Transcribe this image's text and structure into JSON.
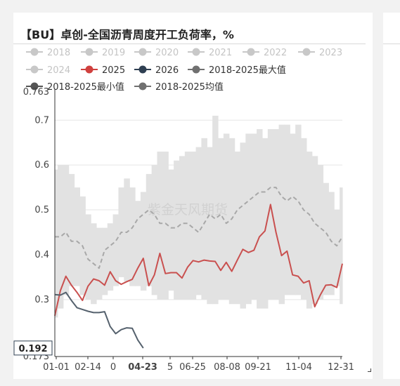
{
  "title": "【BU】卓创-全国沥青周度开工负荷率，%",
  "watermark": "紫金天风期货",
  "colors": {
    "band": "#e2e2e2",
    "avg": "#a8a8a8",
    "s2025": "#c9504f",
    "s2026": "#55616d",
    "inactive": "#c8c8c8",
    "grid": "#e5e5e5",
    "axis": "#333333"
  },
  "legend": [
    {
      "label": "2018",
      "active": false,
      "color": "#c8c8c8"
    },
    {
      "label": "2019",
      "active": false,
      "color": "#c8c8c8"
    },
    {
      "label": "2020",
      "active": false,
      "color": "#c8c8c8"
    },
    {
      "label": "2021",
      "active": false,
      "color": "#c8c8c8"
    },
    {
      "label": "2022",
      "active": false,
      "color": "#c8c8c8"
    },
    {
      "label": "2023",
      "active": false,
      "color": "#c8c8c8"
    },
    {
      "label": "2024",
      "active": false,
      "color": "#c8c8c8"
    },
    {
      "label": "2025",
      "active": true,
      "color": "#d0403e"
    },
    {
      "label": "2026",
      "active": true,
      "color": "#2f3f52"
    },
    {
      "label": "2018-2025最大值",
      "active": true,
      "color": "#707070"
    },
    {
      "label": "2018-2025最小值",
      "active": true,
      "color": "#555555"
    },
    {
      "label": "2018-2025均值",
      "active": true,
      "color": "#707070"
    }
  ],
  "chart_data": {
    "type": "line",
    "title": "【BU】卓创-全国沥青周度开工负荷率，%",
    "ylim": [
      0.173,
      0.763
    ],
    "y_ticks": [
      "0.3",
      "0.4",
      "0.5",
      "0.6",
      "0.7"
    ],
    "y_min_label": "0.173",
    "y_max_label": "0.763",
    "x_ticks": [
      "01-01",
      "02-14",
      "0",
      "04-23",
      "5",
      "06-25",
      "08-08",
      "09-21",
      "11-04",
      "12-31"
    ],
    "x_highlight": "04-23",
    "current_value_label": "0.192",
    "week_index_range": [
      0,
      52
    ],
    "grid": true,
    "band_max": [
      0.59,
      0.6,
      0.6,
      0.58,
      0.55,
      0.53,
      0.49,
      0.47,
      0.46,
      0.46,
      0.47,
      0.49,
      0.55,
      0.57,
      0.55,
      0.52,
      0.54,
      0.58,
      0.6,
      0.63,
      0.63,
      0.59,
      0.61,
      0.62,
      0.63,
      0.63,
      0.64,
      0.66,
      0.64,
      0.71,
      0.66,
      0.67,
      0.66,
      0.63,
      0.65,
      0.67,
      0.67,
      0.68,
      0.66,
      0.68,
      0.68,
      0.69,
      0.69,
      0.67,
      0.69,
      0.66,
      0.63,
      0.62,
      0.6,
      0.56,
      0.54,
      0.5,
      0.55
    ],
    "band_min": [
      0.26,
      0.28,
      0.31,
      0.33,
      0.33,
      0.31,
      0.3,
      0.29,
      0.3,
      0.31,
      0.32,
      0.33,
      0.35,
      0.34,
      0.33,
      0.33,
      0.32,
      0.33,
      0.31,
      0.3,
      0.3,
      0.32,
      0.3,
      0.3,
      0.3,
      0.3,
      0.31,
      0.3,
      0.29,
      0.29,
      0.3,
      0.3,
      0.29,
      0.29,
      0.28,
      0.29,
      0.3,
      0.28,
      0.28,
      0.3,
      0.3,
      0.29,
      0.31,
      0.31,
      0.31,
      0.3,
      0.28,
      0.29,
      0.3,
      0.31,
      0.31,
      0.33,
      0.29
    ],
    "series": [
      {
        "name": "2018-2025均值",
        "style": "dashed",
        "values": [
          0.44,
          0.44,
          0.45,
          0.43,
          0.43,
          0.42,
          0.39,
          0.38,
          0.37,
          0.41,
          0.42,
          0.43,
          0.45,
          0.45,
          0.46,
          0.48,
          0.49,
          0.5,
          0.49,
          0.47,
          0.47,
          0.46,
          0.46,
          0.47,
          0.47,
          0.46,
          0.45,
          0.47,
          0.49,
          0.48,
          0.49,
          0.47,
          0.48,
          0.5,
          0.51,
          0.52,
          0.53,
          0.54,
          0.54,
          0.55,
          0.55,
          0.53,
          0.52,
          0.53,
          0.52,
          0.5,
          0.49,
          0.47,
          0.46,
          0.45,
          0.43,
          0.42,
          0.44
        ]
      },
      {
        "name": "2025",
        "values": [
          0.264,
          0.32,
          0.352,
          0.332,
          0.316,
          0.298,
          0.33,
          0.346,
          0.342,
          0.332,
          0.362,
          0.342,
          0.334,
          0.34,
          0.345,
          0.37,
          0.392,
          0.331,
          0.355,
          0.403,
          0.358,
          0.36,
          0.36,
          0.348,
          0.372,
          0.387,
          0.384,
          0.388,
          0.386,
          0.385,
          0.365,
          0.383,
          0.363,
          0.388,
          0.412,
          0.405,
          0.41,
          0.44,
          0.453,
          0.512,
          0.45,
          0.398,
          0.408,
          0.355,
          0.352,
          0.337,
          0.342,
          0.284,
          0.31,
          0.332,
          0.333,
          0.327,
          0.38
        ]
      },
      {
        "name": "2026",
        "values": [
          0.311,
          0.31,
          0.316,
          0.298,
          0.282,
          0.278,
          0.274,
          0.271,
          0.271,
          0.273,
          0.24,
          0.224,
          0.233,
          0.237,
          0.236,
          0.21,
          0.192
        ]
      }
    ]
  }
}
